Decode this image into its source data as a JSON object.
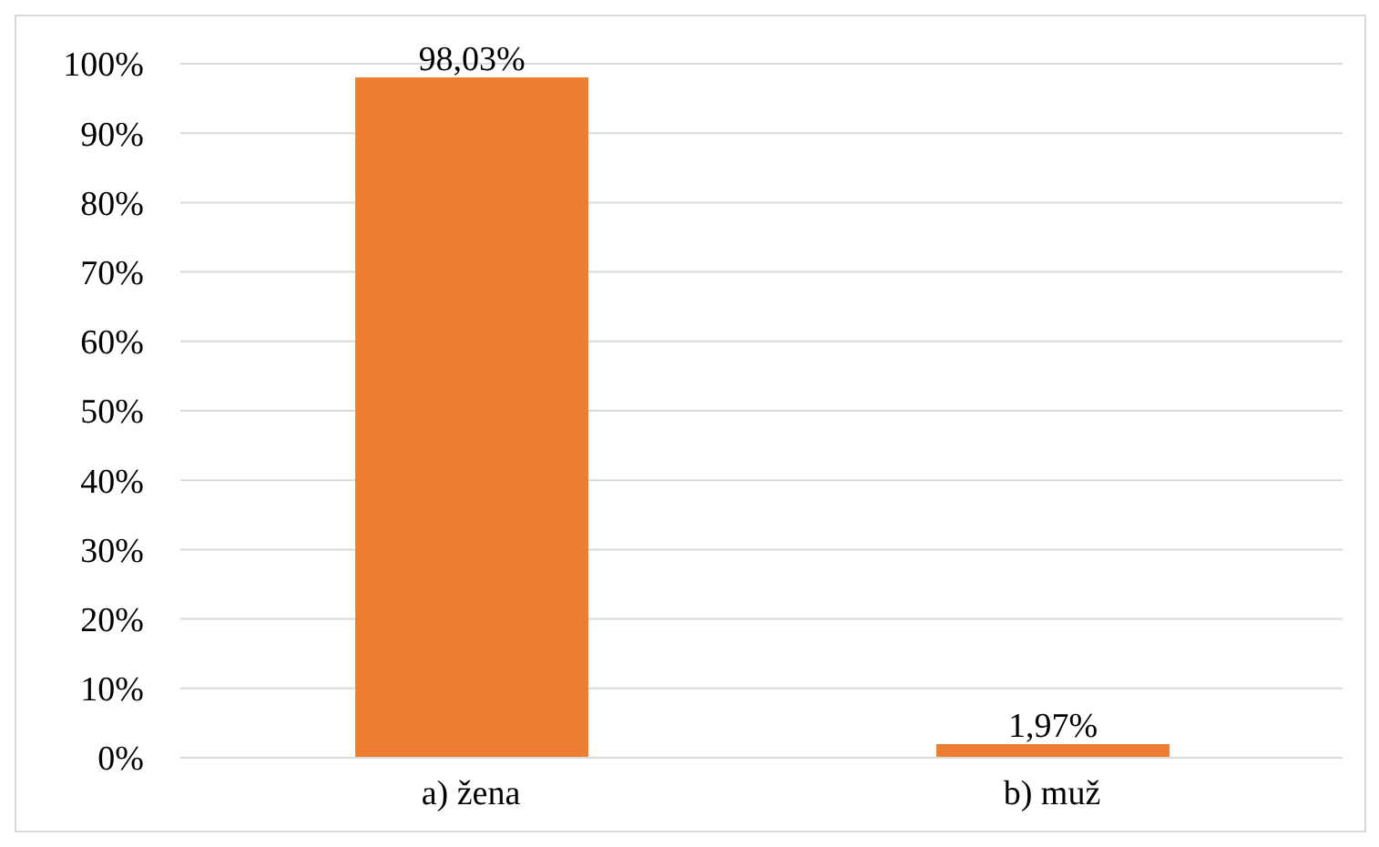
{
  "chart_data": {
    "type": "bar",
    "categories": [
      "a) žena",
      "b) muž"
    ],
    "values": [
      98.03,
      1.97
    ],
    "value_labels": [
      "98,03%",
      "1,97%"
    ],
    "color": "#ed7d31",
    "ylim": [
      0,
      100
    ],
    "yticks": [
      {
        "value": 0,
        "label": "0%"
      },
      {
        "value": 10,
        "label": "10%"
      },
      {
        "value": 20,
        "label": "20%"
      },
      {
        "value": 30,
        "label": "30%"
      },
      {
        "value": 40,
        "label": "40%"
      },
      {
        "value": 50,
        "label": "50%"
      },
      {
        "value": 60,
        "label": "60%"
      },
      {
        "value": 70,
        "label": "70%"
      },
      {
        "value": 80,
        "label": "80%"
      },
      {
        "value": 90,
        "label": "90%"
      },
      {
        "value": 100,
        "label": "100%"
      }
    ],
    "grid": "y",
    "legend": false
  }
}
